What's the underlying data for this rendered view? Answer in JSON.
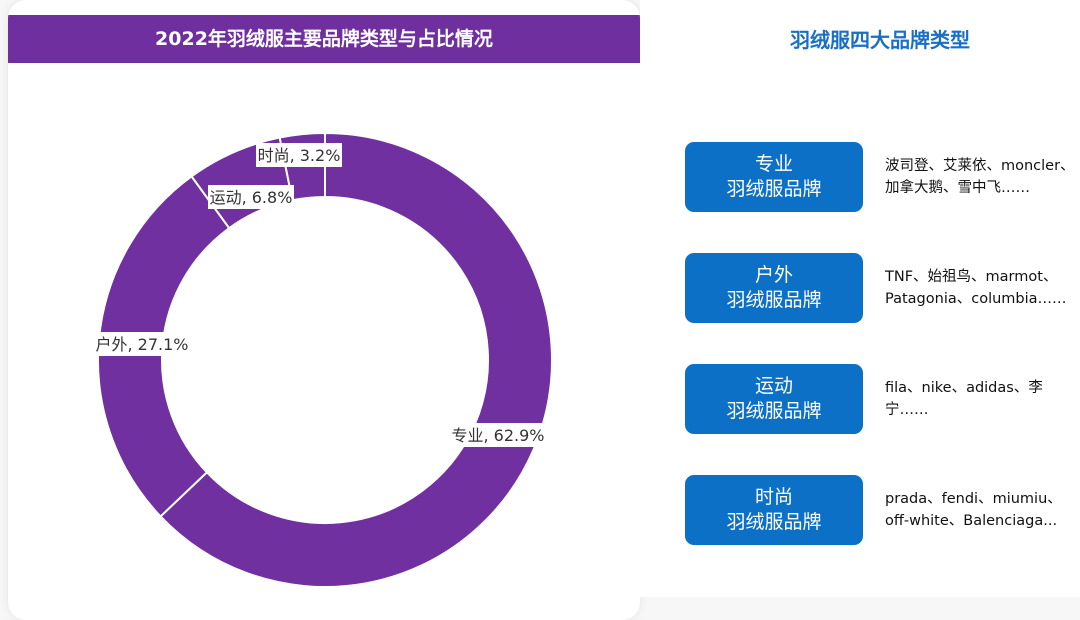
{
  "chart_data": {
    "type": "pie",
    "variant": "donut",
    "title": "2022年羽绒服主要品牌类型与占比情况",
    "categories": [
      "专业",
      "户外",
      "运动",
      "时尚"
    ],
    "values": [
      62.9,
      27.1,
      6.8,
      3.2
    ],
    "unit": "%",
    "labels": [
      "专业, 62.9%",
      "户外, 27.1%",
      "运动, 6.8%",
      "时尚, 3.2%"
    ],
    "color": "#7030a0",
    "start": "top, clockwise"
  },
  "panel": {
    "title": "羽绒服四大品牌类型",
    "items": [
      {
        "line1": "专业",
        "line2": "羽绒服品牌",
        "desc1": "波司登、艾莱依、moncler、",
        "desc2": "加拿大鹅、雪中飞……"
      },
      {
        "line1": "户外",
        "line2": "羽绒服品牌",
        "desc1": "TNF、始祖鸟、marmot、",
        "desc2": "Patagonia、columbia……"
      },
      {
        "line1": "运动",
        "line2": "羽绒服品牌",
        "desc1": "fila、nike、adidas、李",
        "desc2": "宁……"
      },
      {
        "line1": "时尚",
        "line2": "羽绒服品牌",
        "desc1": "prada、fendi、miumiu、",
        "desc2": "off-white、Balenciaga..."
      }
    ],
    "button_color": "#0b70c6",
    "title_color": "#1a6fc4"
  }
}
